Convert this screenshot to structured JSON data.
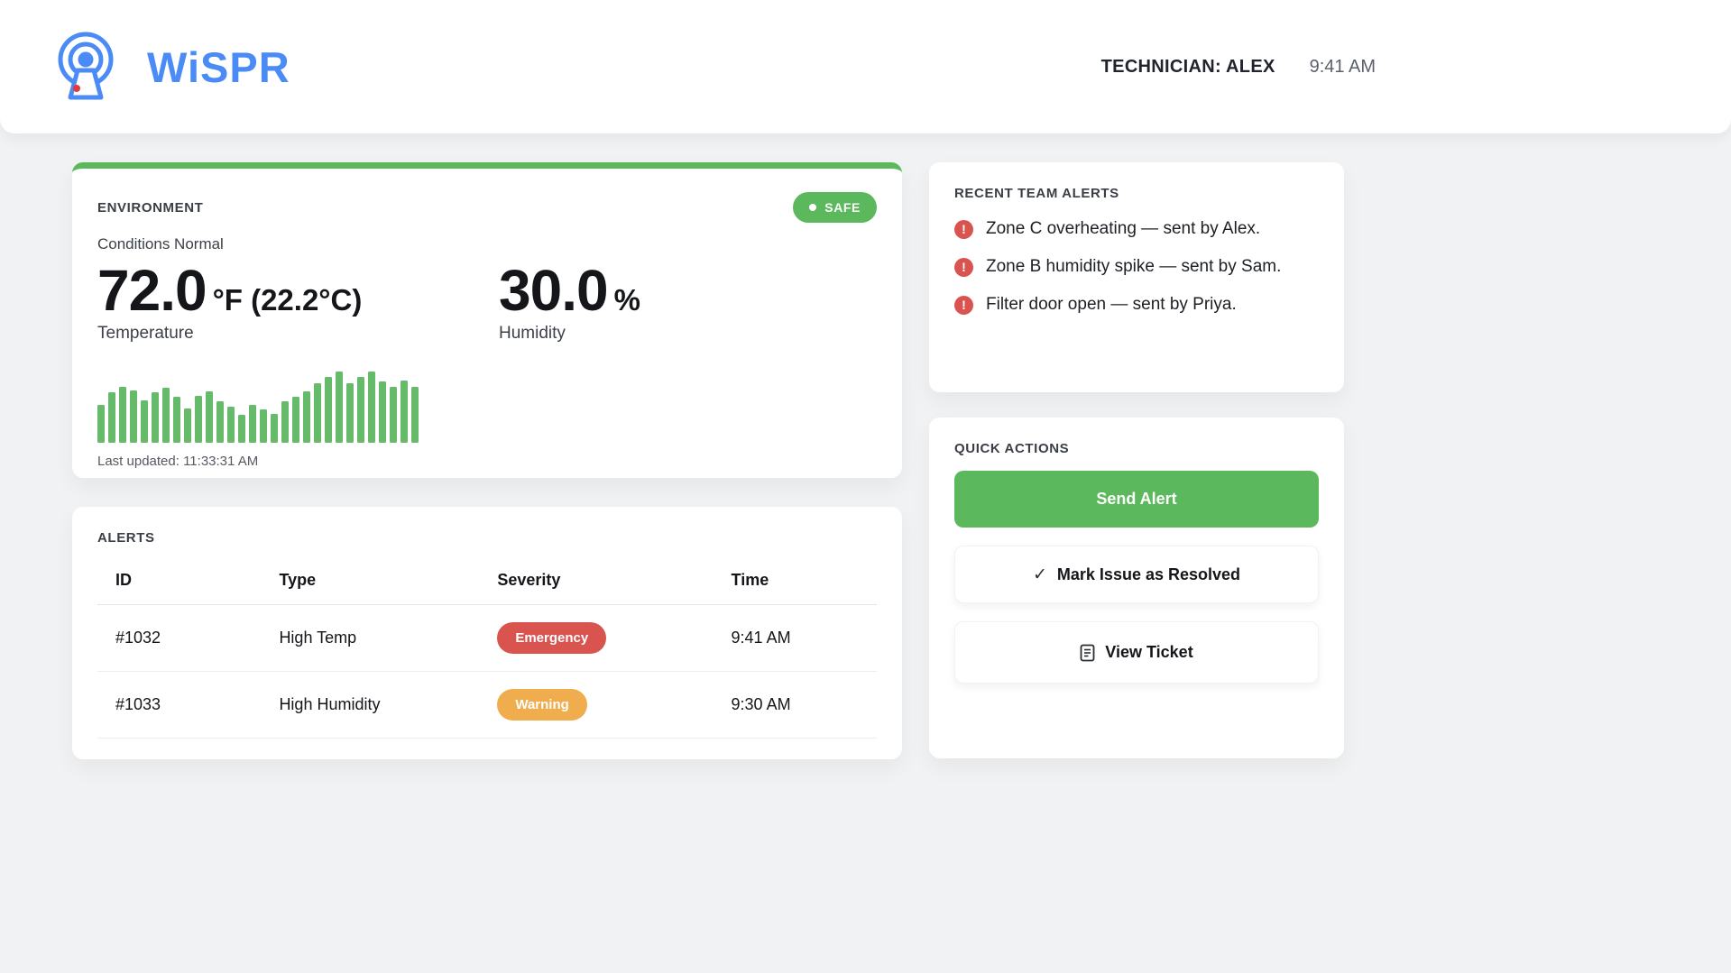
{
  "header": {
    "brand": "WiSPR",
    "technician": "TECHNICIAN: ALEX",
    "time": "9:41 AM"
  },
  "environment": {
    "title": "ENVIRONMENT",
    "status_badge": "SAFE",
    "condition": "Conditions Normal",
    "temperature": {
      "value": "72.0",
      "unit": "°F (22.2°C)",
      "label": "Temperature"
    },
    "humidity": {
      "value": "30.0",
      "unit": "%",
      "label": "Humidity"
    },
    "last_updated": "Last updated: 11:33:31 AM",
    "sparkline": {
      "type": "bar",
      "color": "#66bb6a",
      "max": 80,
      "values": [
        42,
        56,
        62,
        58,
        47,
        56,
        61,
        51,
        38,
        52,
        57,
        46,
        40,
        31,
        42,
        37,
        32,
        46,
        51,
        57,
        66,
        73,
        79,
        66,
        73,
        79,
        68,
        62,
        69,
        62
      ]
    }
  },
  "alerts": {
    "title": "ALERTS",
    "columns": [
      "ID",
      "Type",
      "Severity",
      "Time"
    ],
    "rows": [
      {
        "id": "#1032",
        "type": "High Temp",
        "severity": "Emergency",
        "time": "9:41 AM"
      },
      {
        "id": "#1033",
        "type": "High Humidity",
        "severity": "Warning",
        "time": "9:30 AM"
      }
    ]
  },
  "team_alerts": {
    "title": "RECENT TEAM ALERTS",
    "items": [
      "Zone C overheating — sent by Alex.",
      "Zone B humidity spike — sent by Sam.",
      "Filter door open — sent by Priya."
    ]
  },
  "quick_actions": {
    "title": "QUICK ACTIONS",
    "send_alert": "Send Alert",
    "mark_resolved": "Mark Issue as Resolved",
    "view_ticket": "View Ticket"
  },
  "icons": {
    "exclamation": "!",
    "check": "✓"
  },
  "colors": {
    "brand_blue": "#4b8bf5",
    "accent_green": "#5cb85c",
    "bar_green": "#66bb6a",
    "emergency_red": "#d9534f",
    "warning_orange": "#f0ad4e"
  }
}
